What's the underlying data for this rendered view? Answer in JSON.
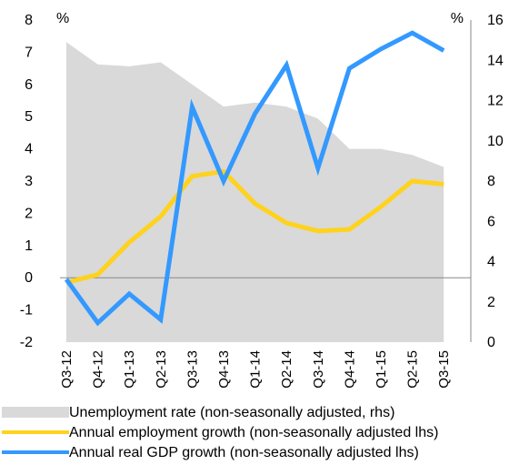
{
  "chart_data": {
    "type": "line",
    "categories": [
      "Q3-12",
      "Q4-12",
      "Q1-13",
      "Q2-13",
      "Q3-13",
      "Q4-13",
      "Q1-14",
      "Q2-14",
      "Q3-14",
      "Q4-14",
      "Q1-15",
      "Q2-15",
      "Q3-15"
    ],
    "left_axis": {
      "unit_label": "%",
      "ylim": [
        -2,
        8
      ],
      "ticks": [
        "8",
        "7",
        "6",
        "5",
        "4",
        "3",
        "2",
        "1",
        "0",
        "-1",
        "-2"
      ]
    },
    "right_axis": {
      "unit_label": "%",
      "ylim": [
        0,
        16
      ],
      "ticks": [
        "16",
        "14",
        "12",
        "10",
        "8",
        "6",
        "4",
        "2",
        "0"
      ]
    },
    "series": [
      {
        "name": "Unemployment rate (non-seasonally adjusted, rhs)",
        "kind": "area",
        "axis": "right",
        "color": "#d9d9d9",
        "values": [
          14.9,
          13.8,
          13.7,
          13.9,
          12.8,
          11.7,
          11.9,
          11.7,
          11.1,
          9.6,
          9.6,
          9.3,
          8.7
        ]
      },
      {
        "name": "Annual employment growth (non-seasonally adjusted lhs)",
        "kind": "line",
        "axis": "left",
        "color": "#ffd21e",
        "values": [
          -0.15,
          0.1,
          1.1,
          1.9,
          3.15,
          3.3,
          2.3,
          1.7,
          1.45,
          1.5,
          2.2,
          3.0,
          2.9
        ]
      },
      {
        "name": "Annual real GDP growth (non-seasonally adjusted lhs)",
        "kind": "line",
        "axis": "left",
        "color": "#3399ff",
        "values": [
          -0.05,
          -1.4,
          -0.5,
          -1.3,
          5.3,
          3.0,
          5.1,
          6.6,
          3.4,
          6.5,
          7.1,
          7.6,
          7.05
        ]
      }
    ],
    "grid": false,
    "zero_line": true,
    "legend_position": "bottom"
  }
}
